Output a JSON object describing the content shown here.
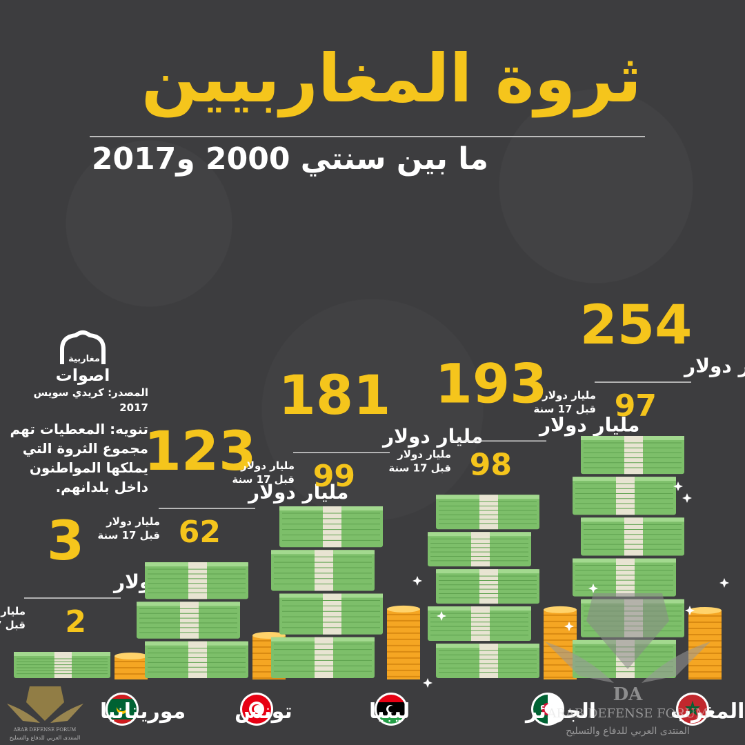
{
  "title": "ثروة المغاربيين",
  "subtitle": "ما بين سنتي 2000 و2017",
  "logo": {
    "small_text": "مغاربية",
    "big_text": "اصوات"
  },
  "source": "المصدر: كريدي سويس 2017",
  "note": "تنويه: المعطيات تهم مجموع الثروة التي يملكها المواطنون داخل بلدانهم.",
  "prev_label_line1": "مليار دولار",
  "prev_label_line2": "قبل 17 سنة",
  "watermark": {
    "title": "ARAB DEFENSE FORUM",
    "arabic": "المنتدى العربي للدفاع والتسليح",
    "mark": "DA"
  },
  "colors": {
    "accent": "#f5c51c",
    "background": "#3d3d3f",
    "cash": "#7dbf6a",
    "coin": "#f5a623"
  },
  "chart_data": {
    "type": "bar",
    "title": "ثروة المغاربيين",
    "subtitle": "ما بين سنتي 2000 و2017",
    "categories": [
      "موريتانيا",
      "تونس",
      "ليبيا",
      "الجزائر",
      "المغرب"
    ],
    "series": [
      {
        "values": [
          3,
          123,
          181,
          193,
          254
        ]
      },
      {
        "values": [
          2,
          62,
          99,
          98,
          97
        ]
      }
    ],
    "items": [
      {
        "country": "موريتانيا",
        "flag": "mauritania",
        "value_2017": 3,
        "unit": "مليارات دولار",
        "value_2000": 2
      },
      {
        "country": "تونس",
        "flag": "tunisia",
        "value_2017": 123,
        "unit": "مليار دولار",
        "value_2000": 62
      },
      {
        "country": "ليبيا",
        "flag": "libya",
        "value_2017": 181,
        "unit": "مليار دولار",
        "value_2000": 99
      },
      {
        "country": "الجزائر",
        "flag": "algeria",
        "value_2017": 193,
        "unit": "مليار دولار",
        "value_2000": 98
      },
      {
        "country": "المغرب",
        "flag": "morocco",
        "value_2017": 254,
        "unit": "مليار دولار",
        "value_2000": 97
      }
    ]
  }
}
